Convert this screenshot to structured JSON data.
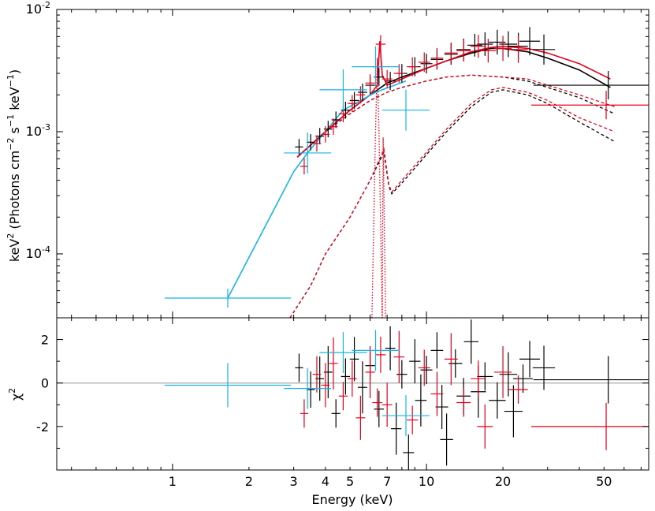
{
  "chart_data": [
    {
      "type": "line",
      "panel": "spectrum",
      "xscale": "log",
      "yscale": "log",
      "xlim": [
        0.35,
        75
      ],
      "ylim": [
        3e-05,
        0.01
      ],
      "xlabel": "Energy (keV)",
      "ylabel": "keV² (Photons cm⁻² s⁻¹ keV⁻¹)",
      "ylabel_parts": {
        "pre": "keV",
        "sup1": "2",
        "mid": " (Photons cm",
        "sup2": "−2",
        "mid2": " s",
        "sup3": "−1",
        "mid3": " keV",
        "sup4": "−1",
        "post": ")"
      },
      "xticks": [
        {
          "value": 1,
          "label": "1"
        },
        {
          "value": 2,
          "label": "2"
        },
        {
          "value": 3,
          "label": "3"
        },
        {
          "value": 4,
          "label": "4"
        },
        {
          "value": 5,
          "label": "5"
        },
        {
          "value": 7,
          "label": "7"
        },
        {
          "value": 10,
          "label": "10"
        },
        {
          "value": 20,
          "label": "20"
        },
        {
          "value": 50,
          "label": "50"
        }
      ],
      "yticks": [
        {
          "value": 0.01,
          "base": "10",
          "exp": "-2"
        },
        {
          "value": 0.001,
          "base": "10",
          "exp": "-3"
        },
        {
          "value": 0.0001,
          "base": "10",
          "exp": "-4"
        }
      ],
      "series": [
        {
          "name": "data-black",
          "color": "#000000",
          "kind": "errorbars",
          "points": [
            [
              3.15,
              0.00075
            ],
            [
              3.5,
              0.00082
            ],
            [
              3.8,
              0.00092
            ],
            [
              4.1,
              0.00105
            ],
            [
              4.4,
              0.00125
            ],
            [
              4.8,
              0.0015
            ],
            [
              5.2,
              0.0018
            ],
            [
              5.6,
              0.0021
            ],
            [
              6.0,
              0.0024
            ],
            [
              6.5,
              0.0028
            ],
            [
              7.2,
              0.0026
            ],
            [
              8.0,
              0.003
            ],
            [
              9.0,
              0.0034
            ],
            [
              10.0,
              0.0036
            ],
            [
              11.0,
              0.0039
            ],
            [
              12.5,
              0.0043
            ],
            [
              14.0,
              0.0047
            ],
            [
              15.5,
              0.0051
            ],
            [
              17.0,
              0.0052
            ],
            [
              19.0,
              0.0054
            ],
            [
              21.0,
              0.0052
            ],
            [
              23.0,
              0.005
            ],
            [
              25.5,
              0.0055
            ],
            [
              29.0,
              0.0047
            ],
            [
              52.0,
              0.0024
            ]
          ]
        },
        {
          "name": "data-red",
          "color": "#e8001c",
          "kind": "errorbars",
          "points": [
            [
              3.3,
              0.00052
            ],
            [
              3.7,
              0.0008
            ],
            [
              4.0,
              0.00095
            ],
            [
              4.3,
              0.0011
            ],
            [
              4.7,
              0.0014
            ],
            [
              5.1,
              0.0017
            ],
            [
              5.5,
              0.002
            ],
            [
              6.0,
              0.0025
            ],
            [
              6.4,
              0.0034
            ],
            [
              6.6,
              0.0052
            ],
            [
              7.0,
              0.0027
            ],
            [
              7.8,
              0.003
            ],
            [
              8.8,
              0.0034
            ],
            [
              9.8,
              0.0037
            ],
            [
              11.0,
              0.004
            ],
            [
              12.5,
              0.0044
            ],
            [
              14.0,
              0.0046
            ],
            [
              16.0,
              0.005
            ],
            [
              17.5,
              0.0046
            ],
            [
              20.0,
              0.0048
            ],
            [
              23.0,
              0.0047
            ],
            [
              51.0,
              0.00165
            ]
          ]
        },
        {
          "name": "data-cyan",
          "color": "#1ab3e6",
          "kind": "errorbars",
          "points": [
            [
              1.65,
              4.35e-05
            ],
            [
              3.4,
              0.00067
            ],
            [
              4.7,
              0.0022
            ],
            [
              6.3,
              0.0034
            ],
            [
              8.3,
              0.0015
            ]
          ]
        },
        {
          "name": "model-black",
          "color": "#000000",
          "kind": "line",
          "dash": "solid",
          "points": [
            [
              3.1,
              0.00062
            ],
            [
              4,
              0.001
            ],
            [
              5,
              0.0015
            ],
            [
              6,
              0.002
            ],
            [
              7,
              0.0025
            ],
            [
              8,
              0.0028
            ],
            [
              10,
              0.0033
            ],
            [
              12,
              0.0038
            ],
            [
              15,
              0.0044
            ],
            [
              18,
              0.0048
            ],
            [
              20,
              0.0048
            ],
            [
              25,
              0.0045
            ],
            [
              30,
              0.004
            ],
            [
              40,
              0.0032
            ],
            [
              53,
              0.0023
            ]
          ]
        },
        {
          "name": "model-red",
          "color": "#e8001c",
          "kind": "line",
          "dash": "solid",
          "points": [
            [
              3.1,
              0.00062
            ],
            [
              4,
              0.001
            ],
            [
              5,
              0.0015
            ],
            [
              6,
              0.002
            ],
            [
              6.4,
              0.0024
            ],
            [
              6.55,
              0.0055
            ],
            [
              6.7,
              0.0029
            ],
            [
              7,
              0.0024
            ],
            [
              8,
              0.0027
            ],
            [
              10,
              0.0033
            ],
            [
              12,
              0.0038
            ],
            [
              15,
              0.0045
            ],
            [
              18,
              0.0049
            ],
            [
              20,
              0.005
            ],
            [
              25,
              0.0048
            ],
            [
              30,
              0.0044
            ],
            [
              40,
              0.0036
            ],
            [
              53,
              0.0027
            ]
          ]
        },
        {
          "name": "model-cyan",
          "color": "#1ab3e6",
          "kind": "line",
          "dash": "solid",
          "points": [
            [
              1.65,
              4.35e-05
            ],
            [
              3.0,
              0.00047
            ],
            [
              3.4,
              0.00067
            ],
            [
              4.7,
              0.0015
            ],
            [
              6.3,
              0.0021
            ],
            [
              8.3,
              0.0026
            ]
          ]
        },
        {
          "name": "comp1-black",
          "color": "#000000",
          "kind": "line",
          "dash": "dashed",
          "points": [
            [
              3.1,
              0.00062
            ],
            [
              4,
              0.001
            ],
            [
              5,
              0.0014
            ],
            [
              6,
              0.0018
            ],
            [
              7,
              0.0021
            ],
            [
              8,
              0.0023
            ],
            [
              10,
              0.0026
            ],
            [
              12,
              0.0028
            ],
            [
              15,
              0.0029
            ],
            [
              20,
              0.0028
            ],
            [
              25,
              0.0026
            ],
            [
              30,
              0.0023
            ],
            [
              40,
              0.0019
            ],
            [
              55,
              0.0014
            ]
          ]
        },
        {
          "name": "comp1-red",
          "color": "#e8001c",
          "kind": "line",
          "dash": "dashed",
          "points": [
            [
              3.1,
              0.00062
            ],
            [
              4,
              0.001
            ],
            [
              5,
              0.0014
            ],
            [
              6,
              0.0018
            ],
            [
              7,
              0.0021
            ],
            [
              8,
              0.0023
            ],
            [
              10,
              0.0026
            ],
            [
              12,
              0.0028
            ],
            [
              15,
              0.0029
            ],
            [
              20,
              0.0028
            ],
            [
              25,
              0.0027
            ],
            [
              30,
              0.0024
            ],
            [
              40,
              0.002
            ],
            [
              55,
              0.0016
            ]
          ]
        },
        {
          "name": "comp2-black",
          "color": "#000000",
          "kind": "line",
          "dash": "dashed",
          "points": [
            [
              2.9,
              3e-05
            ],
            [
              3.5,
              5.5e-05
            ],
            [
              4,
              0.0001
            ],
            [
              5,
              0.0002
            ],
            [
              6,
              0.0004
            ],
            [
              6.8,
              0.00068
            ],
            [
              7.1,
              0.00036
            ],
            [
              7.3,
              0.00031
            ],
            [
              8,
              0.00038
            ],
            [
              10,
              0.00065
            ],
            [
              12,
              0.001
            ],
            [
              15,
              0.0016
            ],
            [
              18,
              0.0021
            ],
            [
              20,
              0.0022
            ],
            [
              25,
              0.002
            ],
            [
              30,
              0.0017
            ],
            [
              40,
              0.0012
            ],
            [
              55,
              0.00083
            ]
          ]
        },
        {
          "name": "comp2-red",
          "color": "#e8001c",
          "kind": "line",
          "dash": "dashed",
          "points": [
            [
              2.9,
              3e-05
            ],
            [
              3.5,
              5.5e-05
            ],
            [
              4,
              0.0001
            ],
            [
              5,
              0.0002
            ],
            [
              6,
              0.0004
            ],
            [
              6.8,
              0.00072
            ],
            [
              7.1,
              0.00037
            ],
            [
              7.3,
              0.00032
            ],
            [
              8,
              0.0004
            ],
            [
              10,
              0.00068
            ],
            [
              12,
              0.00105
            ],
            [
              15,
              0.0017
            ],
            [
              18,
              0.0022
            ],
            [
              20,
              0.0023
            ],
            [
              25,
              0.0021
            ],
            [
              30,
              0.0018
            ],
            [
              40,
              0.0013
            ],
            [
              55,
              0.001
            ]
          ]
        },
        {
          "name": "iron-line",
          "color": "#e8001c",
          "kind": "line",
          "dash": "dotted",
          "points": [
            [
              6.1,
              3e-05
            ],
            [
              6.3,
              0.001
            ],
            [
              6.4,
              0.0035
            ],
            [
              6.5,
              0.001
            ],
            [
              6.7,
              3e-05
            ],
            [
              6.75,
              0.0009
            ],
            [
              6.9,
              3e-05
            ]
          ]
        }
      ]
    },
    {
      "type": "scatter",
      "panel": "residuals",
      "xscale": "log",
      "xlim": [
        0.35,
        75
      ],
      "ylim": [
        -4,
        3
      ],
      "ylabel": "χ²",
      "ylabel_parts": {
        "base": "χ",
        "sup": "2"
      },
      "yticks": [
        {
          "value": 2,
          "label": "2"
        },
        {
          "value": 0,
          "label": "0"
        },
        {
          "value": -2,
          "label": "-2"
        }
      ],
      "zero_line_color": "#aaaaaa",
      "series": [
        {
          "name": "resid-black",
          "color": "#000000",
          "points": [
            [
              3.15,
              0.7
            ],
            [
              3.5,
              -0.3
            ],
            [
              3.8,
              0.2
            ],
            [
              4.1,
              0.5
            ],
            [
              4.4,
              -1.4
            ],
            [
              4.8,
              0.3
            ],
            [
              5.2,
              1.1
            ],
            [
              5.6,
              -0.2
            ],
            [
              6.0,
              0.8
            ],
            [
              6.5,
              -1.2
            ],
            [
              7.2,
              1.6
            ],
            [
              7.6,
              -2.1
            ],
            [
              8.0,
              0.4
            ],
            [
              8.5,
              -3.2
            ],
            [
              9.0,
              1.0
            ],
            [
              9.5,
              -0.8
            ],
            [
              10.0,
              0.6
            ],
            [
              11.0,
              1.5
            ],
            [
              11.5,
              -1.1
            ],
            [
              12.0,
              -2.6
            ],
            [
              13.0,
              0.9
            ],
            [
              14.0,
              -0.6
            ],
            [
              15.0,
              1.9
            ],
            [
              16.0,
              -0.4
            ],
            [
              17.0,
              0.3
            ],
            [
              19.0,
              -0.8
            ],
            [
              21.0,
              0.4
            ],
            [
              22.0,
              -1.3
            ],
            [
              24.0,
              0.2
            ],
            [
              25.5,
              1.1
            ],
            [
              29.0,
              0.7
            ],
            [
              52.0,
              0.15
            ]
          ]
        },
        {
          "name": "resid-red",
          "color": "#e8001c",
          "points": [
            [
              3.3,
              -1.4
            ],
            [
              3.7,
              0.4
            ],
            [
              4.0,
              -0.1
            ],
            [
              4.3,
              0.9
            ],
            [
              4.7,
              -0.6
            ],
            [
              5.1,
              0.2
            ],
            [
              5.5,
              -1.6
            ],
            [
              6.0,
              0.5
            ],
            [
              6.4,
              -0.9
            ],
            [
              6.6,
              1.3
            ],
            [
              7.0,
              -1.0
            ],
            [
              7.8,
              1.2
            ],
            [
              8.8,
              -1.7
            ],
            [
              9.8,
              0.7
            ],
            [
              11.0,
              -0.5
            ],
            [
              12.5,
              1.1
            ],
            [
              14.0,
              -0.9
            ],
            [
              16.0,
              0.2
            ],
            [
              17.0,
              -2.0
            ],
            [
              20.0,
              0.5
            ],
            [
              23.0,
              -0.3
            ],
            [
              51.0,
              -2.0
            ]
          ]
        },
        {
          "name": "resid-cyan",
          "color": "#1ab3e6",
          "points": [
            [
              1.65,
              -0.1
            ],
            [
              3.4,
              -0.25
            ],
            [
              4.7,
              1.4
            ],
            [
              6.3,
              1.5
            ],
            [
              8.3,
              -1.5
            ]
          ]
        }
      ]
    }
  ]
}
